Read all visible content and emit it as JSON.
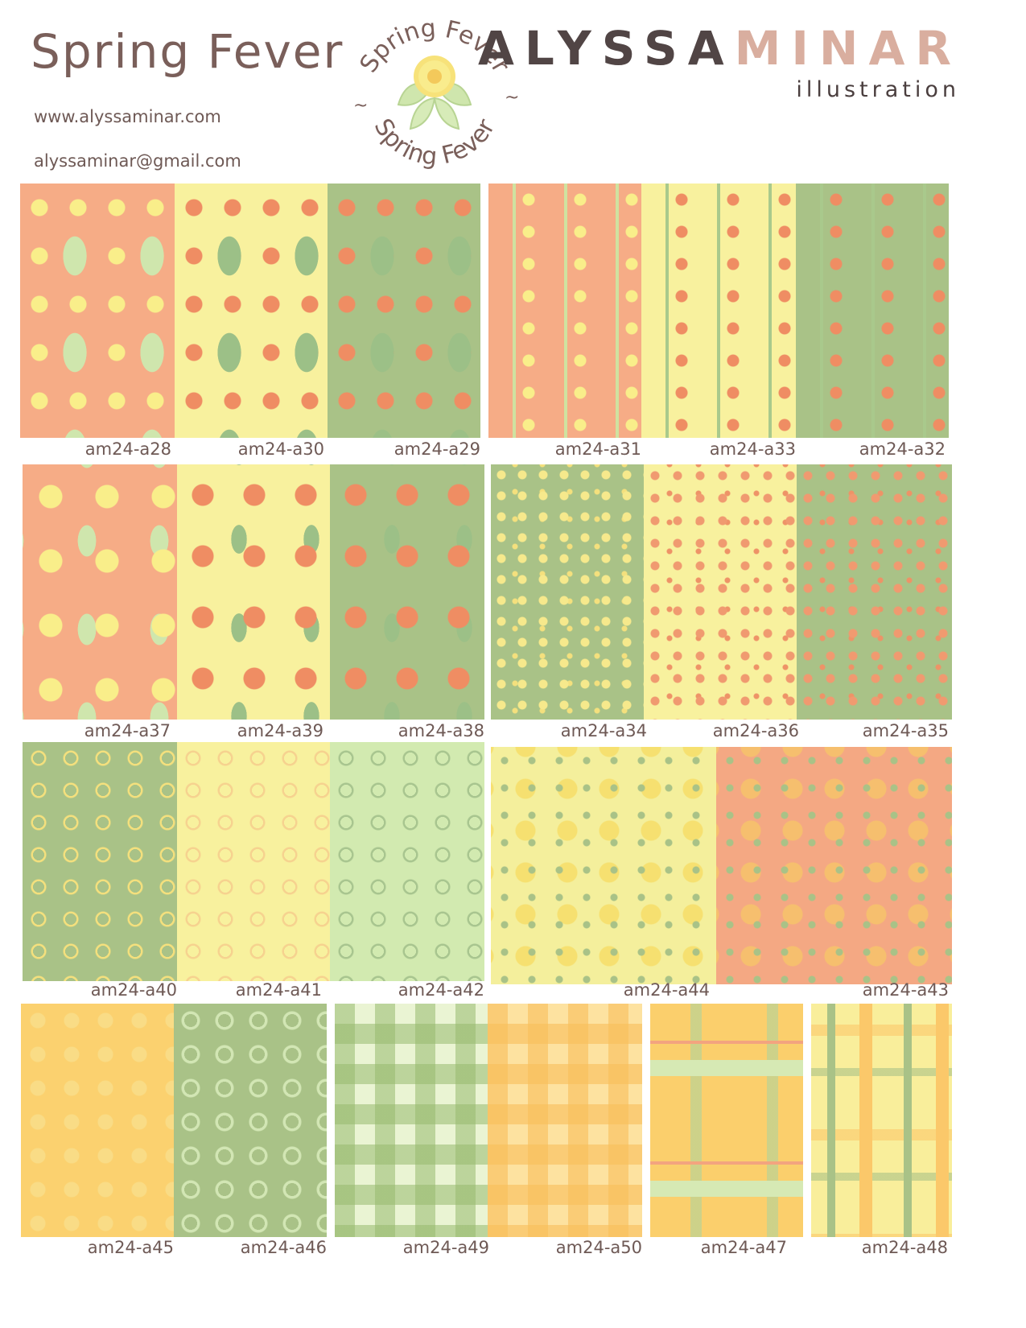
{
  "header": {
    "collection_title": "Spring Fever",
    "website": "www.alyssaminar.com",
    "email": "alyssaminar@gmail.com",
    "badge_text_top": "Spring Fever",
    "badge_text_bottom": "Spring Fever",
    "badge_separator": "~",
    "brand_first": "ALYSSA",
    "brand_last": "MINAR",
    "brand_sub": "illustration"
  },
  "colors": {
    "peach": "#f6ac86",
    "butter": "#f8f19e",
    "sage": "#a9c287",
    "mint": "#d2eab0",
    "gold": "#fbd16f",
    "brand_dark": "#514545",
    "brand_light": "#d9ae9f"
  },
  "swatches": {
    "row1": [
      "am24-a28",
      "am24-a30",
      "am24-a29",
      "am24-a31",
      "am24-a33",
      "am24-a32"
    ],
    "row2": [
      "am24-a37",
      "am24-a39",
      "am24-a38",
      "am24-a34",
      "am24-a36",
      "am24-a35"
    ],
    "row3": [
      "am24-a40",
      "am24-a41",
      "am24-a42",
      "am24-a44",
      "am24-a43"
    ],
    "row4": [
      "am24-a45",
      "am24-a46",
      "am24-a49",
      "am24-a50",
      "am24-a47",
      "am24-a48"
    ]
  }
}
